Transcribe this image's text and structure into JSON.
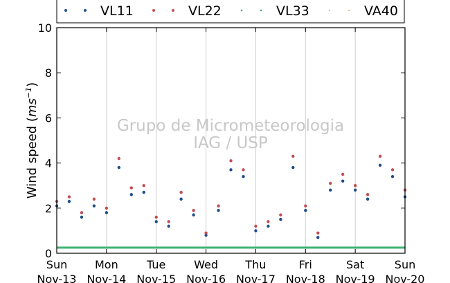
{
  "chart_data": {
    "type": "scatter",
    "ylabel": "Wind speed (ms⁻¹)",
    "ylabel_main": "Wind speed (",
    "ylabel_unit": "ms",
    "ylabel_exp": "−1",
    "ylabel_close": ")",
    "ylim": [
      0,
      10
    ],
    "y_ticks": [
      0,
      2,
      4,
      6,
      8,
      10
    ],
    "x_ticks": [
      {
        "day": "Sun",
        "date": "Nov-13"
      },
      {
        "day": "Mon",
        "date": "Nov-14"
      },
      {
        "day": "Tue",
        "date": "Nov-15"
      },
      {
        "day": "Wed",
        "date": "Nov-16"
      },
      {
        "day": "Thu",
        "date": "Nov-17"
      },
      {
        "day": "Fri",
        "date": "Nov-18"
      },
      {
        "day": "Sat",
        "date": "Nov-19"
      },
      {
        "day": "Sun",
        "date": "Nov-20"
      }
    ],
    "grid": "vertical",
    "legend_position": "top",
    "watermark": [
      "Grupo de Micrometeorologia",
      "IAG / USP"
    ],
    "series": [
      {
        "name": "VL11",
        "color": "#1f4e8c",
        "marker": "dot",
        "x": [
          "Nov-13 00:00",
          "Nov-13 06:00",
          "Nov-13 12:00",
          "Nov-13 18:00",
          "Nov-14 00:00",
          "Nov-14 06:00",
          "Nov-14 12:00",
          "Nov-14 18:00",
          "Nov-15 00:00",
          "Nov-15 06:00",
          "Nov-15 12:00",
          "Nov-15 18:00",
          "Nov-16 00:00",
          "Nov-16 06:00",
          "Nov-16 12:00",
          "Nov-16 18:00",
          "Nov-17 00:00",
          "Nov-17 06:00",
          "Nov-17 12:00",
          "Nov-17 18:00",
          "Nov-18 00:00",
          "Nov-18 06:00",
          "Nov-18 12:00",
          "Nov-18 18:00",
          "Nov-19 00:00",
          "Nov-19 06:00",
          "Nov-19 12:00",
          "Nov-19 18:00",
          "Nov-20 00:00"
        ],
        "values": [
          2.1,
          2.3,
          1.6,
          2.1,
          1.8,
          3.8,
          2.6,
          2.7,
          1.4,
          1.2,
          2.4,
          1.7,
          0.8,
          1.9,
          3.7,
          3.4,
          1.0,
          1.2,
          1.5,
          3.8,
          1.9,
          0.7,
          2.8,
          3.2,
          2.8,
          2.4,
          3.9,
          3.4,
          2.5
        ]
      },
      {
        "name": "VL22",
        "color": "#c44e52",
        "marker": "dot",
        "x": [
          "Nov-13 00:00",
          "Nov-13 06:00",
          "Nov-13 12:00",
          "Nov-13 18:00",
          "Nov-14 00:00",
          "Nov-14 06:00",
          "Nov-14 12:00",
          "Nov-14 18:00",
          "Nov-15 00:00",
          "Nov-15 06:00",
          "Nov-15 12:00",
          "Nov-15 18:00",
          "Nov-16 00:00",
          "Nov-16 06:00",
          "Nov-16 12:00",
          "Nov-16 18:00",
          "Nov-17 00:00",
          "Nov-17 06:00",
          "Nov-17 12:00",
          "Nov-17 18:00",
          "Nov-18 00:00",
          "Nov-18 06:00",
          "Nov-18 12:00",
          "Nov-18 18:00",
          "Nov-19 00:00",
          "Nov-19 06:00",
          "Nov-19 12:00",
          "Nov-19 18:00",
          "Nov-20 00:00"
        ],
        "values": [
          2.3,
          2.5,
          1.8,
          2.4,
          2.0,
          4.2,
          2.9,
          3.0,
          1.6,
          1.4,
          2.7,
          1.9,
          0.9,
          2.1,
          4.1,
          3.7,
          1.2,
          1.4,
          1.7,
          4.3,
          2.1,
          0.9,
          3.1,
          3.5,
          3.0,
          2.6,
          4.3,
          3.7,
          2.8
        ]
      },
      {
        "name": "VL33",
        "color": "#3cb371",
        "marker": "line",
        "x": [
          "Nov-13 00:00",
          "Nov-20 00:00"
        ],
        "values": [
          0.25,
          0.25
        ]
      },
      {
        "name": "VA40",
        "color": "#e8a27a",
        "marker": "dot",
        "x": [],
        "values": []
      }
    ]
  }
}
